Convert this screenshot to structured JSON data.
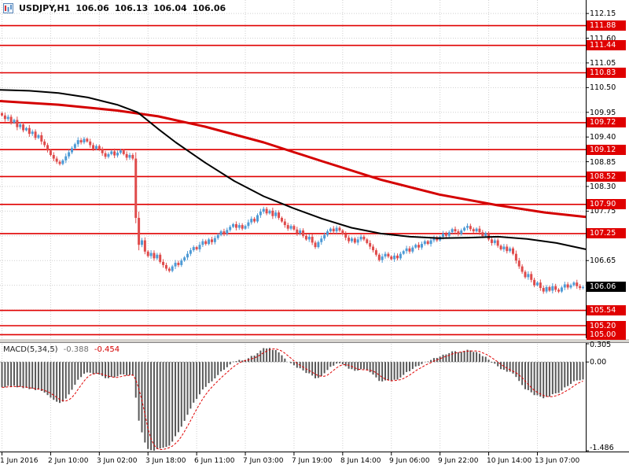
{
  "header": {
    "symbol": "USDJPY,H1",
    "open": "106.06",
    "high": "106.13",
    "low": "106.04",
    "close": "106.06"
  },
  "macd_panel": {
    "label": "MACD(5,34,5)",
    "value": "-0.388",
    "signal_value": "-0.454"
  },
  "colors": {
    "bull": "#4d9ad5",
    "bear": "#df4b4b",
    "ma_black": "#000000",
    "ma_red": "#d40000",
    "level": "#e00000",
    "badge": "#e00000",
    "badge_current": "#000000",
    "grid": "#cfcfcf",
    "macd_bar": "#585858",
    "macd_signal": "#e00000"
  },
  "chart_data": {
    "type": "candlestick",
    "title": "USDJPY,H1",
    "symbol": "USDJPY",
    "timeframe": "H1",
    "ylim": [
      104.92,
      112.45
    ],
    "y_grid_labels": [
      112.15,
      111.6,
      111.05,
      110.5,
      109.95,
      109.4,
      108.85,
      108.3,
      107.75,
      107.2,
      106.65,
      106.1,
      105.55,
      105.0
    ],
    "level_lines": [
      111.88,
      111.44,
      110.83,
      109.72,
      109.12,
      108.52,
      107.9,
      107.25,
      105.54,
      105.2,
      105.0
    ],
    "current_price": 106.06,
    "x_labels": [
      "1 Jun 2016",
      "2 Jun 10:00",
      "3 Jun 02:00",
      "3 Jun 18:00",
      "6 Jun 11:00",
      "7 Jun 03:00",
      "7 Jun 19:00",
      "8 Jun 14:00",
      "9 Jun 06:00",
      "9 Jun 22:00",
      "10 Jun 14:00",
      "13 Jun 07:00"
    ],
    "x_label_indices": [
      0,
      16,
      32,
      48,
      64,
      80,
      96,
      112,
      128,
      144,
      160,
      176
    ],
    "closes": [
      109.88,
      109.8,
      109.85,
      109.72,
      109.78,
      109.62,
      109.68,
      109.55,
      109.6,
      109.47,
      109.52,
      109.38,
      109.44,
      109.3,
      109.22,
      109.1,
      109.0,
      108.92,
      108.85,
      108.8,
      108.88,
      108.97,
      109.06,
      109.15,
      109.24,
      109.33,
      109.28,
      109.36,
      109.3,
      109.22,
      109.14,
      109.2,
      109.12,
      109.04,
      108.96,
      109.02,
      109.08,
      108.99,
      109.05,
      109.1,
      109.02,
      108.94,
      109.0,
      108.92,
      107.6,
      107.0,
      107.1,
      106.85,
      106.75,
      106.82,
      106.7,
      106.78,
      106.62,
      106.55,
      106.47,
      106.42,
      106.52,
      106.6,
      106.55,
      106.65,
      106.72,
      106.8,
      106.88,
      106.95,
      106.9,
      107.0,
      107.08,
      107.02,
      107.12,
      107.06,
      107.15,
      107.22,
      107.3,
      107.25,
      107.33,
      107.4,
      107.46,
      107.38,
      107.44,
      107.36,
      107.42,
      107.5,
      107.58,
      107.52,
      107.66,
      107.74,
      107.8,
      107.7,
      107.76,
      107.64,
      107.72,
      107.6,
      107.52,
      107.44,
      107.36,
      107.42,
      107.34,
      107.26,
      107.32,
      107.2,
      107.12,
      107.18,
      107.05,
      106.95,
      107.06,
      107.14,
      107.22,
      107.3,
      107.36,
      107.3,
      107.38,
      107.32,
      107.24,
      107.16,
      107.08,
      107.14,
      107.05,
      107.12,
      107.18,
      107.12,
      107.04,
      106.96,
      106.88,
      106.78,
      106.66,
      106.74,
      106.8,
      106.74,
      106.68,
      106.76,
      106.7,
      106.8,
      106.86,
      106.92,
      106.85,
      106.94,
      107.0,
      106.94,
      107.02,
      107.08,
      107.02,
      107.1,
      107.16,
      107.1,
      107.18,
      107.25,
      107.2,
      107.28,
      107.35,
      107.3,
      107.24,
      107.32,
      107.38,
      107.42,
      107.35,
      107.3,
      107.36,
      107.28,
      107.2,
      107.26,
      107.12,
      107.04,
      107.1,
      106.98,
      106.9,
      106.96,
      106.86,
      106.92,
      106.8,
      106.65,
      106.52,
      106.4,
      106.28,
      106.35,
      106.22,
      106.1,
      106.16,
      106.04,
      105.96,
      106.06,
      105.98,
      106.08,
      106.0,
      105.96,
      106.05,
      106.12,
      106.05,
      106.1,
      106.16,
      106.08,
      106.04,
      106.06
    ],
    "ma_black": [
      [
        0,
        110.45
      ],
      [
        0.05,
        110.43
      ],
      [
        0.1,
        110.38
      ],
      [
        0.15,
        110.28
      ],
      [
        0.2,
        110.12
      ],
      [
        0.235,
        109.95
      ],
      [
        0.27,
        109.58
      ],
      [
        0.3,
        109.28
      ],
      [
        0.35,
        108.83
      ],
      [
        0.4,
        108.42
      ],
      [
        0.45,
        108.08
      ],
      [
        0.5,
        107.82
      ],
      [
        0.55,
        107.58
      ],
      [
        0.6,
        107.38
      ],
      [
        0.65,
        107.25
      ],
      [
        0.7,
        107.18
      ],
      [
        0.75,
        107.15
      ],
      [
        0.8,
        107.16
      ],
      [
        0.85,
        107.18
      ],
      [
        0.9,
        107.13
      ],
      [
        0.95,
        107.04
      ],
      [
        1,
        106.9
      ]
    ],
    "ma_red": [
      [
        0,
        110.2
      ],
      [
        0.1,
        110.12
      ],
      [
        0.2,
        109.99
      ],
      [
        0.27,
        109.86
      ],
      [
        0.35,
        109.63
      ],
      [
        0.45,
        109.28
      ],
      [
        0.55,
        108.86
      ],
      [
        0.65,
        108.45
      ],
      [
        0.75,
        108.12
      ],
      [
        0.85,
        107.88
      ],
      [
        0.93,
        107.72
      ],
      [
        1,
        107.62
      ]
    ],
    "macd": {
      "fast": 5,
      "slow": 34,
      "signal": 5,
      "ylim": [
        -1.486,
        0.305
      ],
      "axis_labels": [
        "0.305",
        "0.00",
        "-1.486"
      ]
    }
  }
}
